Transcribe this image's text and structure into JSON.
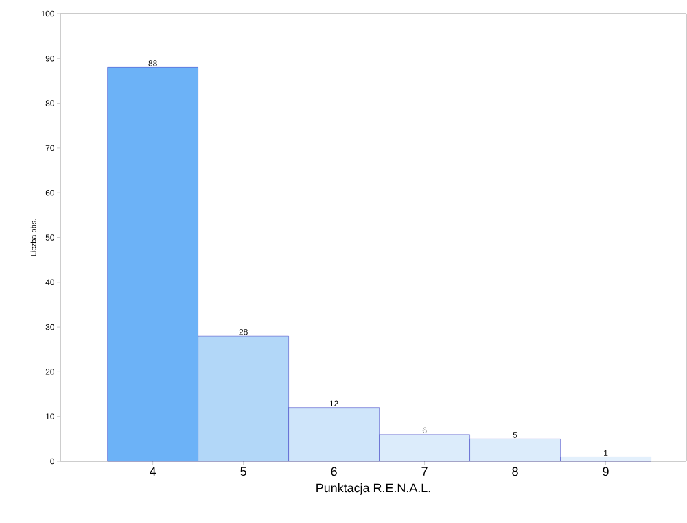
{
  "chart_data": {
    "type": "bar",
    "xlabel": "Punktacja R.E.N.A.L.",
    "ylabel": "Liczba obs.",
    "categories": [
      "4",
      "5",
      "6",
      "7",
      "8",
      "9"
    ],
    "values": [
      88,
      28,
      12,
      6,
      5,
      1
    ],
    "colors": [
      "#6cb2f7",
      "#b2d7f8",
      "#cfe5fa",
      "#dcecfb",
      "#dcecfb",
      "#e3f0fc"
    ],
    "ylim": [
      0,
      100
    ],
    "yticks": [
      0,
      10,
      20,
      30,
      40,
      50,
      60,
      70,
      80,
      90,
      100
    ],
    "data_labels": true
  }
}
